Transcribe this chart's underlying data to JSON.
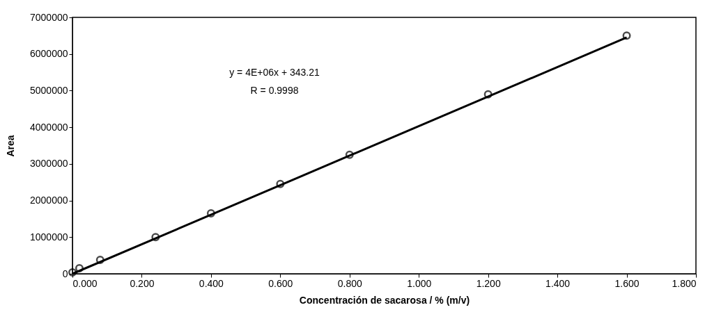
{
  "chart_data": {
    "type": "scatter",
    "xlabel": "Concentración de sacarosa / % (m/v)",
    "ylabel": "Area",
    "xlim": [
      0,
      1.8
    ],
    "xticks": [
      {
        "value": 0,
        "label": "0.000"
      },
      {
        "value": 0.2,
        "label": "0.200"
      },
      {
        "value": 0.4,
        "label": "0.400"
      },
      {
        "value": 0.6,
        "label": "0.600"
      },
      {
        "value": 0.8,
        "label": "0.800"
      },
      {
        "value": 1.0,
        "label": "1.000"
      },
      {
        "value": 1.2,
        "label": "1.200"
      },
      {
        "value": 1.4,
        "label": "1.400"
      },
      {
        "value": 1.6,
        "label": "1.600"
      },
      {
        "value": 1.8,
        "label": "1.800"
      }
    ],
    "ylim": [
      0,
      7000000
    ],
    "yticks": [
      0,
      1000000,
      2000000,
      3000000,
      4000000,
      5000000,
      6000000,
      7000000
    ],
    "grid": false,
    "marker": "circle",
    "annotations": [
      "y = 4E+06x + 343.21",
      "R = 0.9998"
    ],
    "series": [
      {
        "color": "#000000",
        "x": [
          0,
          0.02,
          0.08,
          0.24,
          0.4,
          0.6,
          0.8,
          1.2,
          1.6
        ],
        "values": [
          40000,
          150000,
          380000,
          1000000,
          1650000,
          2450000,
          3250000,
          4900000,
          6500000
        ]
      },
      {
        "type": "line",
        "marker": "none",
        "color": "#000000",
        "x": [
          0,
          1.6
        ],
        "values": [
          0,
          6450000
        ]
      }
    ]
  }
}
